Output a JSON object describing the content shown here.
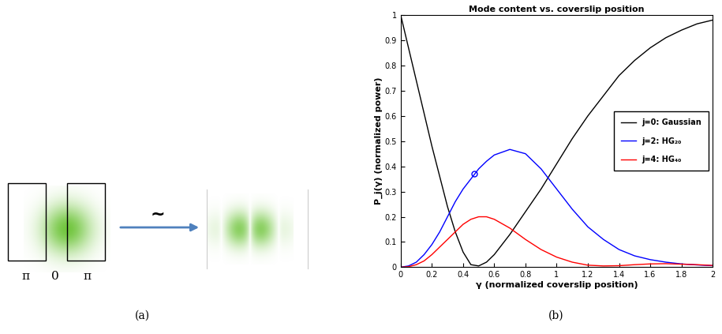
{
  "diagram": {
    "box_labels": [
      "π",
      "0",
      "π"
    ],
    "arrow_label": "~",
    "caption": "(a)"
  },
  "chart_data": {
    "type": "line",
    "caption": "(b)",
    "title": "Mode content vs. coverslip position",
    "x_label": "γ (normalized coverslip position)",
    "y_label": "P_j(γ) (normalized power)",
    "x": [
      0,
      0.05,
      0.1,
      0.15,
      0.2,
      0.25,
      0.3,
      0.35,
      0.4,
      0.45,
      0.5,
      0.55,
      0.6,
      0.7,
      0.8,
      0.9,
      1.0,
      1.1,
      1.2,
      1.3,
      1.4,
      1.5,
      1.6,
      1.7,
      1.8,
      1.9,
      2.0
    ],
    "series": [
      {
        "name": "j=0: Gaussian",
        "color": "#000000",
        "values": [
          1.0,
          0.87,
          0.74,
          0.61,
          0.48,
          0.36,
          0.24,
          0.14,
          0.06,
          0.01,
          0.005,
          0.02,
          0.05,
          0.13,
          0.22,
          0.31,
          0.41,
          0.51,
          0.6,
          0.68,
          0.76,
          0.82,
          0.87,
          0.91,
          0.94,
          0.965,
          0.98
        ]
      },
      {
        "name": "j=2: HG₂₀",
        "color": "#0000ff",
        "values": [
          0.0,
          0.005,
          0.02,
          0.05,
          0.09,
          0.14,
          0.2,
          0.26,
          0.31,
          0.35,
          0.39,
          0.42,
          0.445,
          0.467,
          0.45,
          0.39,
          0.31,
          0.23,
          0.16,
          0.11,
          0.07,
          0.045,
          0.03,
          0.02,
          0.013,
          0.009,
          0.006
        ]
      },
      {
        "name": "j=4: HG₄₀",
        "color": "#ff0000",
        "values": [
          0.0,
          0.002,
          0.01,
          0.025,
          0.05,
          0.08,
          0.11,
          0.14,
          0.17,
          0.19,
          0.2,
          0.2,
          0.19,
          0.155,
          0.11,
          0.07,
          0.04,
          0.02,
          0.008,
          0.005,
          0.006,
          0.01,
          0.013,
          0.014,
          0.012,
          0.01,
          0.007
        ]
      },
      {
        "type": "scatter",
        "color": "#0000ff",
        "marker": "circle",
        "x": [
          0.47
        ],
        "values": [
          0.37
        ]
      }
    ],
    "xlim": [
      0,
      2
    ],
    "xticks": [
      0,
      0.2,
      0.4,
      0.6,
      0.8,
      1,
      1.2,
      1.4,
      1.6,
      1.8,
      2
    ],
    "ylim": [
      0,
      1
    ],
    "yticks": [
      0,
      0.1,
      0.2,
      0.3,
      0.4,
      0.5,
      0.6,
      0.7,
      0.8,
      0.9,
      1
    ],
    "legend": "center right",
    "grid": false
  }
}
